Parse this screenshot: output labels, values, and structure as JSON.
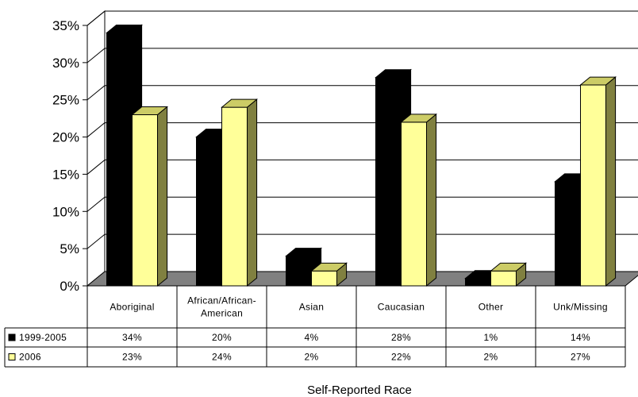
{
  "chart_data": {
    "type": "bar",
    "style": "3d-clustered-column-with-data-table",
    "title": "",
    "xlabel": "Self-Reported Race",
    "ylabel": "",
    "ylim": [
      0,
      35
    ],
    "y_ticks": [
      "0%",
      "5%",
      "10%",
      "15%",
      "20%",
      "25%",
      "30%",
      "35%"
    ],
    "grid": true,
    "legend_placement": "data-table-left",
    "categories": [
      [
        "Aboriginal"
      ],
      [
        "African/African-",
        "American"
      ],
      [
        "Asian"
      ],
      [
        "Caucasian"
      ],
      [
        "Other"
      ],
      [
        "Unk/Missing"
      ]
    ],
    "series": [
      {
        "name": "1999-2005",
        "color": "#000000",
        "values": [
          34,
          20,
          4,
          28,
          1,
          14
        ],
        "labels": [
          "34%",
          "20%",
          "4%",
          "28%",
          "1%",
          "14%"
        ]
      },
      {
        "name": "2006",
        "color": "#FFFF99",
        "values": [
          23,
          24,
          2,
          22,
          2,
          27
        ],
        "labels": [
          "23%",
          "24%",
          "2%",
          "22%",
          "2%",
          "27%"
        ]
      }
    ]
  }
}
